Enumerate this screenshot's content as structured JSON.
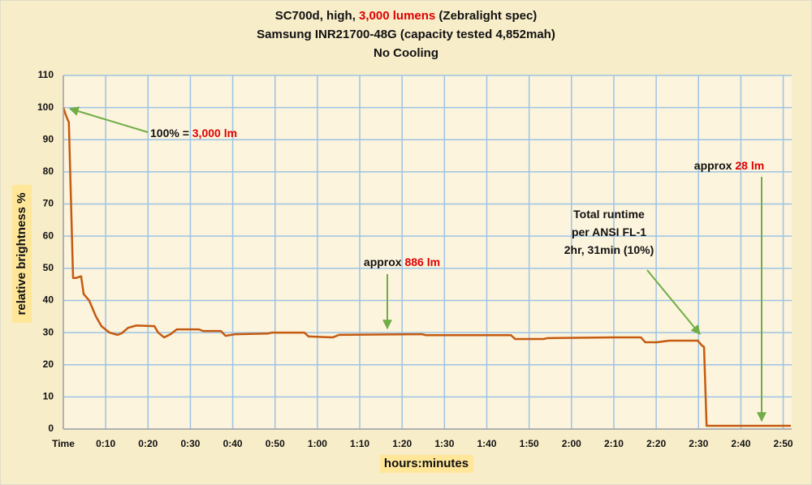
{
  "chart_data": {
    "type": "line",
    "title_lines": [
      [
        {
          "text": "SC700d, high, "
        },
        {
          "text": "3,000 lumens",
          "color": "#e00000"
        },
        {
          "text": " (Zebralight spec)"
        }
      ],
      [
        {
          "text": "Samsung INR21700-48G (capacity tested 4,852mah)"
        }
      ],
      [
        {
          "text": "No Cooling"
        }
      ]
    ],
    "x_label": "hours:minutes",
    "y_label": "relative brightness %",
    "xlim": [
      0,
      172
    ],
    "ylim": [
      0,
      110
    ],
    "xticks": [
      {
        "value": 0,
        "label": "Time"
      },
      {
        "value": 10,
        "label": "0:10"
      },
      {
        "value": 20,
        "label": "0:20"
      },
      {
        "value": 30,
        "label": "0:30"
      },
      {
        "value": 40,
        "label": "0:40"
      },
      {
        "value": 50,
        "label": "0:50"
      },
      {
        "value": 60,
        "label": "1:00"
      },
      {
        "value": 70,
        "label": "1:10"
      },
      {
        "value": 80,
        "label": "1:20"
      },
      {
        "value": 90,
        "label": "1:30"
      },
      {
        "value": 100,
        "label": "1:40"
      },
      {
        "value": 110,
        "label": "1:50"
      },
      {
        "value": 120,
        "label": "2:00"
      },
      {
        "value": 130,
        "label": "2:10"
      },
      {
        "value": 140,
        "label": "2:20"
      },
      {
        "value": 150,
        "label": "2:30"
      },
      {
        "value": 160,
        "label": "2:40"
      },
      {
        "value": 170,
        "label": "2:50"
      }
    ],
    "yticks": [
      0,
      10,
      20,
      30,
      40,
      50,
      60,
      70,
      80,
      90,
      100,
      110
    ],
    "grid": true,
    "series": [
      {
        "name": "SC700d high",
        "color": "#c55a11",
        "x": [
          0,
          0.5,
          1.1,
          1.3,
          2.3,
          3,
          4.2,
          4.8,
          6.1,
          7.7,
          9,
          10.9,
          12.8,
          13.8,
          15.3,
          17.2,
          21.5,
          22.4,
          23.8,
          25.3,
          26.8,
          32,
          33,
          37.2,
          38.3,
          39.7,
          40.6,
          48.3,
          49.2,
          56.9,
          57.9,
          63.6,
          65.1,
          84.7,
          85.6,
          105.7,
          106.7,
          113.4,
          114.4,
          129.7,
          136.4,
          137.4,
          140.2,
          143.1,
          149.8,
          150.8,
          151.3,
          151.9,
          171.8
        ],
        "values": [
          100,
          98,
          96,
          95.5,
          47,
          47,
          47.5,
          42,
          40,
          35,
          32,
          30,
          29.3,
          29.8,
          31.5,
          32.2,
          32,
          30,
          28.5,
          29.5,
          31,
          31,
          30.5,
          30.5,
          29,
          29.3,
          29.5,
          29.7,
          30,
          30,
          28.8,
          28.5,
          29.3,
          29.5,
          29.2,
          29.2,
          28,
          28,
          28.3,
          28.5,
          28.5,
          27,
          27,
          27.5,
          27.5,
          26,
          25.5,
          1,
          1
        ]
      }
    ],
    "annotations": [
      {
        "lines": [
          [
            {
              "text": "100% = "
            },
            {
              "text": "3,000 lm",
              "color": "#e00000"
            }
          ]
        ]
      },
      {
        "lines": [
          [
            {
              "text": "approx "
            },
            {
              "text": "886 lm",
              "color": "#e00000"
            }
          ]
        ]
      },
      {
        "lines": [
          [
            {
              "text": "Total runtime"
            }
          ],
          [
            {
              "text": "per ANSI FL-1"
            }
          ],
          [
            {
              "text": "2hr, 31min (10%)"
            }
          ]
        ]
      },
      {
        "lines": [
          [
            {
              "text": "approx "
            },
            {
              "text": "28 lm",
              "color": "#e00000"
            }
          ]
        ]
      }
    ]
  }
}
